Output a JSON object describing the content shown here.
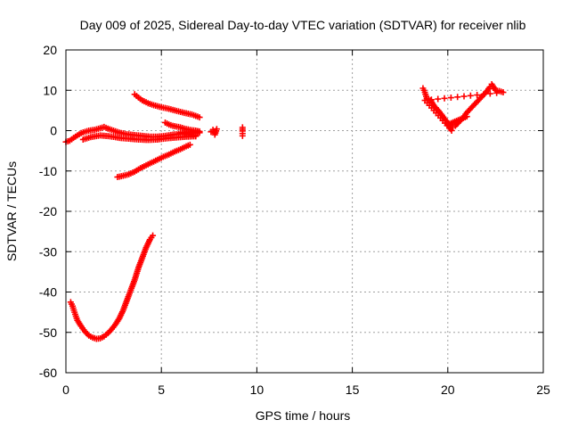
{
  "chart_data": {
    "type": "scatter",
    "title": "Day 009 of 2025, Sidereal Day-to-day VTEC variation (SDTVAR) for receiver nlib",
    "xlabel": "GPS time / hours",
    "ylabel": "SDTVAR / TECUs",
    "xlim": [
      0,
      25
    ],
    "ylim": [
      -60,
      20
    ],
    "xticks": [
      0,
      5,
      10,
      15,
      20,
      25
    ],
    "yticks": [
      -60,
      -50,
      -40,
      -30,
      -20,
      -10,
      0,
      10,
      20
    ],
    "grid": true,
    "legend": "none",
    "marker": "+",
    "series": [
      {
        "name": "dip",
        "color": "#ff0000",
        "points": [
          [
            0.25,
            -42.5
          ],
          [
            0.35,
            -43.5
          ],
          [
            0.45,
            -45
          ],
          [
            0.6,
            -47
          ],
          [
            0.8,
            -48.5
          ],
          [
            1.0,
            -49.8
          ],
          [
            1.2,
            -50.8
          ],
          [
            1.4,
            -51.3
          ],
          [
            1.6,
            -51.6
          ],
          [
            1.8,
            -51.5
          ],
          [
            2.0,
            -51
          ],
          [
            2.2,
            -50.2
          ],
          [
            2.4,
            -49.2
          ],
          [
            2.6,
            -48
          ],
          [
            2.8,
            -46.5
          ],
          [
            3.0,
            -44.5
          ],
          [
            3.2,
            -42
          ],
          [
            3.4,
            -39.5
          ],
          [
            3.6,
            -37
          ],
          [
            3.8,
            -34
          ],
          [
            4.0,
            -31.5
          ],
          [
            4.2,
            -29
          ],
          [
            4.4,
            -27
          ],
          [
            4.55,
            -26
          ]
        ]
      },
      {
        "name": "near-zero-band",
        "color": "#ff0000",
        "points": [
          [
            0.0,
            -2.8
          ],
          [
            0.2,
            -2.5
          ],
          [
            0.4,
            -1.8
          ],
          [
            0.6,
            -1.2
          ],
          [
            0.8,
            -0.6
          ],
          [
            1.0,
            -0.3
          ],
          [
            1.2,
            0.0
          ],
          [
            1.5,
            0.2
          ],
          [
            1.8,
            0.6
          ],
          [
            2.0,
            0.9
          ],
          [
            2.2,
            0.5
          ],
          [
            2.5,
            0.0
          ],
          [
            2.8,
            -0.5
          ],
          [
            3.2,
            -0.9
          ],
          [
            3.6,
            -1.1
          ],
          [
            4.0,
            -1.3
          ],
          [
            4.4,
            -1.5
          ],
          [
            4.8,
            -1.5
          ],
          [
            5.2,
            -1.3
          ],
          [
            5.6,
            -1.0
          ],
          [
            6.0,
            -0.8
          ],
          [
            6.4,
            -0.7
          ],
          [
            6.8,
            -0.6
          ],
          [
            7.0,
            -0.5
          ]
        ]
      },
      {
        "name": "near-zero-lower",
        "color": "#ff0000",
        "points": [
          [
            0.9,
            -2.2
          ],
          [
            1.3,
            -1.6
          ],
          [
            1.8,
            -1.2
          ],
          [
            2.3,
            -1.4
          ],
          [
            2.8,
            -1.8
          ],
          [
            3.3,
            -2.0
          ],
          [
            3.8,
            -2.2
          ],
          [
            4.3,
            -2.3
          ],
          [
            4.8,
            -2.2
          ],
          [
            5.3,
            -1.9
          ],
          [
            5.8,
            -1.7
          ],
          [
            6.3,
            -1.5
          ],
          [
            6.8,
            -1.4
          ]
        ]
      },
      {
        "name": "upper-arc",
        "color": "#ff0000",
        "points": [
          [
            3.6,
            9.0
          ],
          [
            3.8,
            8.2
          ],
          [
            4.0,
            7.5
          ],
          [
            4.3,
            6.8
          ],
          [
            4.6,
            6.3
          ],
          [
            5.0,
            5.8
          ],
          [
            5.4,
            5.4
          ],
          [
            5.8,
            4.9
          ],
          [
            6.2,
            4.4
          ],
          [
            6.6,
            4.0
          ],
          [
            7.0,
            3.3
          ]
        ]
      },
      {
        "name": "lower-arc",
        "color": "#ff0000",
        "points": [
          [
            2.7,
            -11.5
          ],
          [
            3.0,
            -11.2
          ],
          [
            3.3,
            -10.8
          ],
          [
            3.6,
            -10.2
          ],
          [
            3.9,
            -9.3
          ],
          [
            4.2,
            -8.6
          ],
          [
            4.5,
            -7.9
          ],
          [
            4.8,
            -7.2
          ],
          [
            5.1,
            -6.5
          ],
          [
            5.4,
            -5.9
          ],
          [
            5.7,
            -5.2
          ],
          [
            6.0,
            -4.6
          ],
          [
            6.3,
            -3.9
          ],
          [
            6.5,
            -3.5
          ]
        ]
      },
      {
        "name": "mid-cluster",
        "color": "#ff0000",
        "points": [
          [
            5.2,
            2.0
          ],
          [
            5.4,
            1.5
          ],
          [
            5.6,
            1.2
          ],
          [
            5.8,
            1.0
          ],
          [
            6.0,
            0.8
          ],
          [
            6.2,
            0.5
          ],
          [
            6.4,
            0.3
          ],
          [
            6.6,
            0.1
          ],
          [
            6.8,
            0.0
          ],
          [
            7.0,
            -0.2
          ],
          [
            6.0,
            -0.5
          ],
          [
            6.4,
            -0.9
          ],
          [
            6.8,
            -1.2
          ]
        ]
      },
      {
        "name": "isolated-7-8h",
        "color": "#ff0000",
        "points": [
          [
            7.6,
            -0.3
          ],
          [
            7.7,
            0.2
          ],
          [
            7.8,
            -0.6
          ],
          [
            7.9,
            0.4
          ],
          [
            7.8,
            -1.0
          ]
        ]
      },
      {
        "name": "isolated-9h",
        "color": "#ff0000",
        "points": [
          [
            9.25,
            0.8
          ],
          [
            9.25,
            -0.1
          ],
          [
            9.25,
            -1.3
          ]
        ]
      },
      {
        "name": "v-shape",
        "color": "#ff0000",
        "points": [
          [
            18.7,
            10.5
          ],
          [
            18.8,
            9.5
          ],
          [
            18.9,
            8.0
          ],
          [
            19.1,
            7.5
          ],
          [
            19.3,
            6.0
          ],
          [
            19.5,
            5.0
          ],
          [
            19.7,
            3.8
          ],
          [
            19.9,
            2.5
          ],
          [
            20.1,
            1.3
          ],
          [
            20.25,
            0.8
          ],
          [
            20.4,
            1.2
          ],
          [
            20.6,
            2.2
          ],
          [
            20.8,
            3.2
          ],
          [
            21.0,
            4.5
          ],
          [
            21.2,
            5.5
          ],
          [
            21.4,
            6.5
          ],
          [
            21.6,
            7.5
          ],
          [
            21.8,
            8.5
          ],
          [
            22.0,
            9.5
          ],
          [
            22.2,
            10.8
          ],
          [
            22.3,
            11.5
          ],
          [
            22.5,
            10.0
          ],
          [
            22.7,
            9.8
          ],
          [
            22.9,
            9.5
          ],
          [
            18.8,
            7.5
          ],
          [
            20.2,
            0.0
          ],
          [
            20.0,
            1.5
          ],
          [
            21.0,
            3.5
          ]
        ]
      }
    ]
  }
}
